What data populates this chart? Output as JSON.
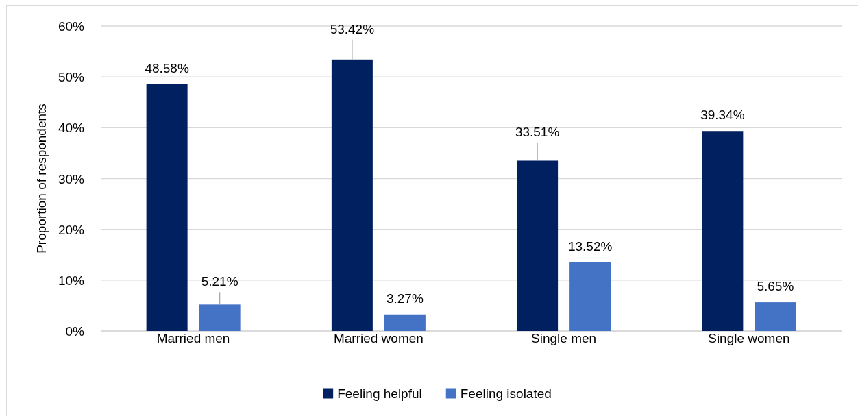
{
  "chart_data": {
    "type": "bar",
    "ylabel": "Proportion of respondents",
    "categories": [
      "Married men",
      "Married women",
      "Single men",
      "Single women"
    ],
    "series": [
      {
        "name": "Feeling helpful",
        "color": "#002060",
        "values": [
          48.58,
          53.42,
          33.51,
          39.34
        ],
        "value_labels": [
          "48.58%",
          "53.42%",
          "33.51%",
          "39.34%"
        ]
      },
      {
        "name": "Feeling isolated",
        "color": "#4472c4",
        "values": [
          5.21,
          3.27,
          13.52,
          5.65
        ],
        "value_labels": [
          "5.21%",
          "3.27%",
          "13.52%",
          "5.65%"
        ]
      }
    ],
    "ylim": [
      0,
      60
    ],
    "yticks": [
      {
        "value": 0,
        "label": "0%"
      },
      {
        "value": 10,
        "label": "10%"
      },
      {
        "value": 20,
        "label": "20%"
      },
      {
        "value": 30,
        "label": "30%"
      },
      {
        "value": 40,
        "label": "40%"
      },
      {
        "value": 50,
        "label": "50%"
      },
      {
        "value": 60,
        "label": "60%"
      }
    ],
    "grid": "y",
    "legend": "bottom"
  }
}
